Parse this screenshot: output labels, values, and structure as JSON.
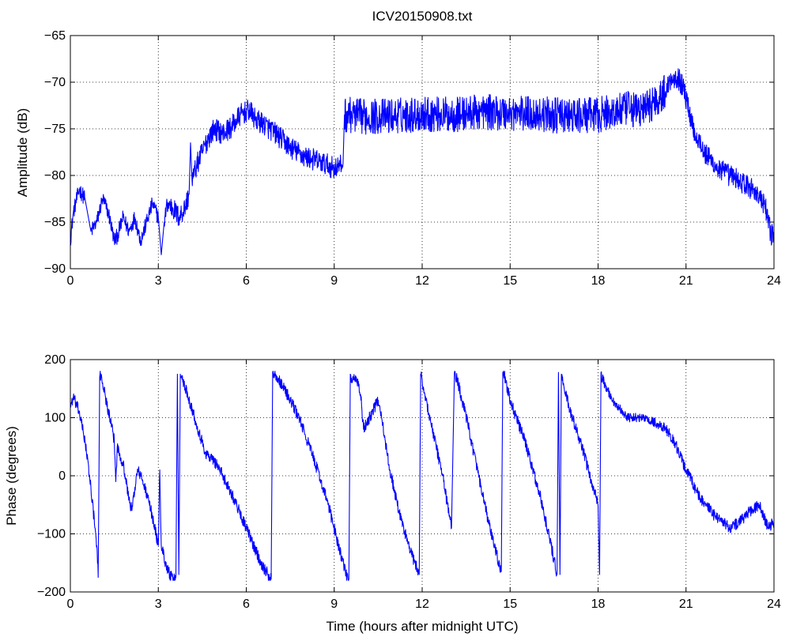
{
  "chart_data": [
    {
      "type": "line",
      "title": "ICV20150908.txt",
      "xlabel": "",
      "ylabel": "Amplitude (dB)",
      "xlim": [
        0,
        24
      ],
      "ylim": [
        -90,
        -65
      ],
      "xticks": [
        0,
        3,
        6,
        9,
        12,
        15,
        18,
        21,
        24
      ],
      "yticks": [
        -65,
        -70,
        -75,
        -80,
        -85,
        -90
      ],
      "grid": true,
      "color": "#0000ff",
      "noise_amplitude_db": 1.2,
      "series": [
        {
          "x": [
            0,
            0.1,
            0.3,
            0.5,
            0.7,
            0.9,
            1.1,
            1.3,
            1.5,
            1.6,
            1.8,
            2.0,
            2.2,
            2.4,
            2.6,
            2.8,
            3.0,
            3.1,
            3.2,
            3.3,
            3.5,
            3.7,
            3.9,
            4.05,
            4.1,
            4.15,
            4.3,
            4.5,
            4.7,
            4.9,
            5.2,
            5.5,
            5.8,
            6.1,
            6.2,
            6.3,
            6.6,
            7.0,
            7.5,
            8.0,
            8.5,
            9.0,
            9.2,
            9.3,
            9.35,
            9.5,
            10.0,
            11.0,
            12.0,
            13.0,
            14.0,
            15.0,
            16.0,
            17.0,
            18.0,
            19.0,
            19.5,
            20.0,
            20.3,
            20.5,
            20.7,
            20.9,
            21.1,
            21.3,
            21.5,
            21.6,
            21.8,
            22.0,
            22.2,
            22.5,
            22.8,
            23.0,
            23.3,
            23.5,
            23.7,
            23.8,
            23.9,
            24.0
          ],
          "y": [
            -87,
            -84,
            -81.5,
            -82.5,
            -86,
            -85,
            -82.5,
            -84,
            -87,
            -86.5,
            -84.5,
            -86,
            -84.5,
            -87,
            -85,
            -83,
            -84.5,
            -88.5,
            -85,
            -83,
            -83.5,
            -84.5,
            -83.5,
            -82,
            -76.5,
            -80.5,
            -79,
            -77.5,
            -76,
            -75,
            -75.5,
            -74.8,
            -73.5,
            -73,
            -73.5,
            -74,
            -74.5,
            -75.5,
            -77,
            -78,
            -78.5,
            -79.2,
            -79,
            -78.8,
            -73.5,
            -73.5,
            -73.7,
            -73.6,
            -73.4,
            -73.5,
            -73.2,
            -73.3,
            -73.4,
            -73.7,
            -73.5,
            -72.9,
            -73,
            -71.9,
            -71,
            -69.5,
            -69.4,
            -70.5,
            -73,
            -75.5,
            -76.5,
            -77.5,
            -78.2,
            -79,
            -79.5,
            -80,
            -80.5,
            -81,
            -81.5,
            -82.3,
            -83.5,
            -84.5,
            -86.5,
            -86
          ]
        }
      ]
    },
    {
      "type": "line",
      "title": "",
      "xlabel": "Time (hours after midnight UTC)",
      "ylabel": "Phase (degrees)",
      "xlim": [
        0,
        24
      ],
      "ylim": [
        -200,
        200
      ],
      "xticks": [
        0,
        3,
        6,
        9,
        12,
        15,
        18,
        21,
        24
      ],
      "yticks": [
        200,
        100,
        0,
        -100,
        -200
      ],
      "grid": true,
      "color": "#0000ff",
      "noise_amplitude_deg": 10,
      "series": [
        {
          "x": [
            0,
            0.1,
            0.3,
            0.5,
            0.7,
            0.9,
            0.95,
            1.0,
            1.05,
            1.1,
            1.3,
            1.5,
            1.55,
            1.6,
            1.8,
            2.0,
            2.1,
            2.2,
            2.3,
            2.4,
            2.6,
            2.8,
            3.0,
            3.05,
            3.1,
            3.3,
            3.5,
            3.6,
            3.65,
            3.7,
            3.75,
            3.8,
            4.0,
            4.3,
            4.6,
            5.0,
            5.5,
            6.0,
            6.5,
            6.8,
            6.85,
            6.9,
            7.0,
            7.3,
            7.8,
            8.3,
            8.8,
            9.2,
            9.4,
            9.5,
            9.55,
            9.6,
            9.75,
            9.9,
            10.0,
            10.5,
            10.6,
            10.7,
            10.9,
            11.2,
            11.6,
            11.9,
            11.95,
            12.0,
            12.05,
            12.3,
            12.7,
            13.0,
            13.1,
            13.2,
            13.6,
            14.0,
            14.4,
            14.7,
            14.75,
            14.8,
            14.85,
            15.0,
            15.5,
            16.0,
            16.4,
            16.6,
            16.65,
            16.7,
            16.75,
            16.8,
            17.0,
            17.5,
            18.0,
            18.05,
            18.1,
            18.15,
            18.5,
            19.0,
            19.5,
            20.0,
            20.3,
            20.6,
            21.0,
            21.5,
            22.0,
            22.5,
            22.8,
            23.2,
            23.5,
            23.8,
            24.0
          ],
          "y": [
            120,
            135,
            110,
            60,
            -20,
            -120,
            -175,
            170,
            175,
            160,
            110,
            60,
            -10,
            50,
            20,
            -40,
            -60,
            -20,
            10,
            0,
            -30,
            -70,
            -120,
            10,
            -120,
            -160,
            -180,
            -175,
            175,
            -170,
            175,
            170,
            140,
            90,
            40,
            20,
            -30,
            -90,
            -150,
            -175,
            -178,
            178,
            175,
            150,
            100,
            30,
            -50,
            -130,
            -170,
            -178,
            175,
            160,
            170,
            140,
            80,
            130,
            110,
            70,
            10,
            -60,
            -130,
            -170,
            175,
            165,
            150,
            90,
            0,
            -90,
            178,
            165,
            80,
            -20,
            -110,
            -165,
            178,
            175,
            160,
            130,
            60,
            -30,
            -120,
            -170,
            178,
            -170,
            175,
            160,
            120,
            40,
            -50,
            -170,
            178,
            165,
            130,
            100,
            100,
            90,
            80,
            60,
            10,
            -40,
            -70,
            -90,
            -80,
            -60,
            -50,
            -90,
            -80
          ]
        }
      ]
    }
  ]
}
